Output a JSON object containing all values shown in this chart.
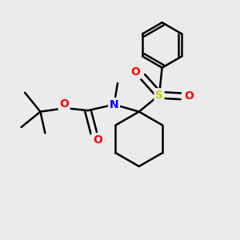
{
  "background_color": "#ebebeb",
  "line_color": "#000000",
  "N_color": "#0000ff",
  "O_color": "#ff0000",
  "S_color": "#cccc00",
  "line_width": 1.8,
  "figsize": [
    3.0,
    3.0
  ],
  "dpi": 100,
  "xlim": [
    0,
    10
  ],
  "ylim": [
    0,
    10
  ]
}
